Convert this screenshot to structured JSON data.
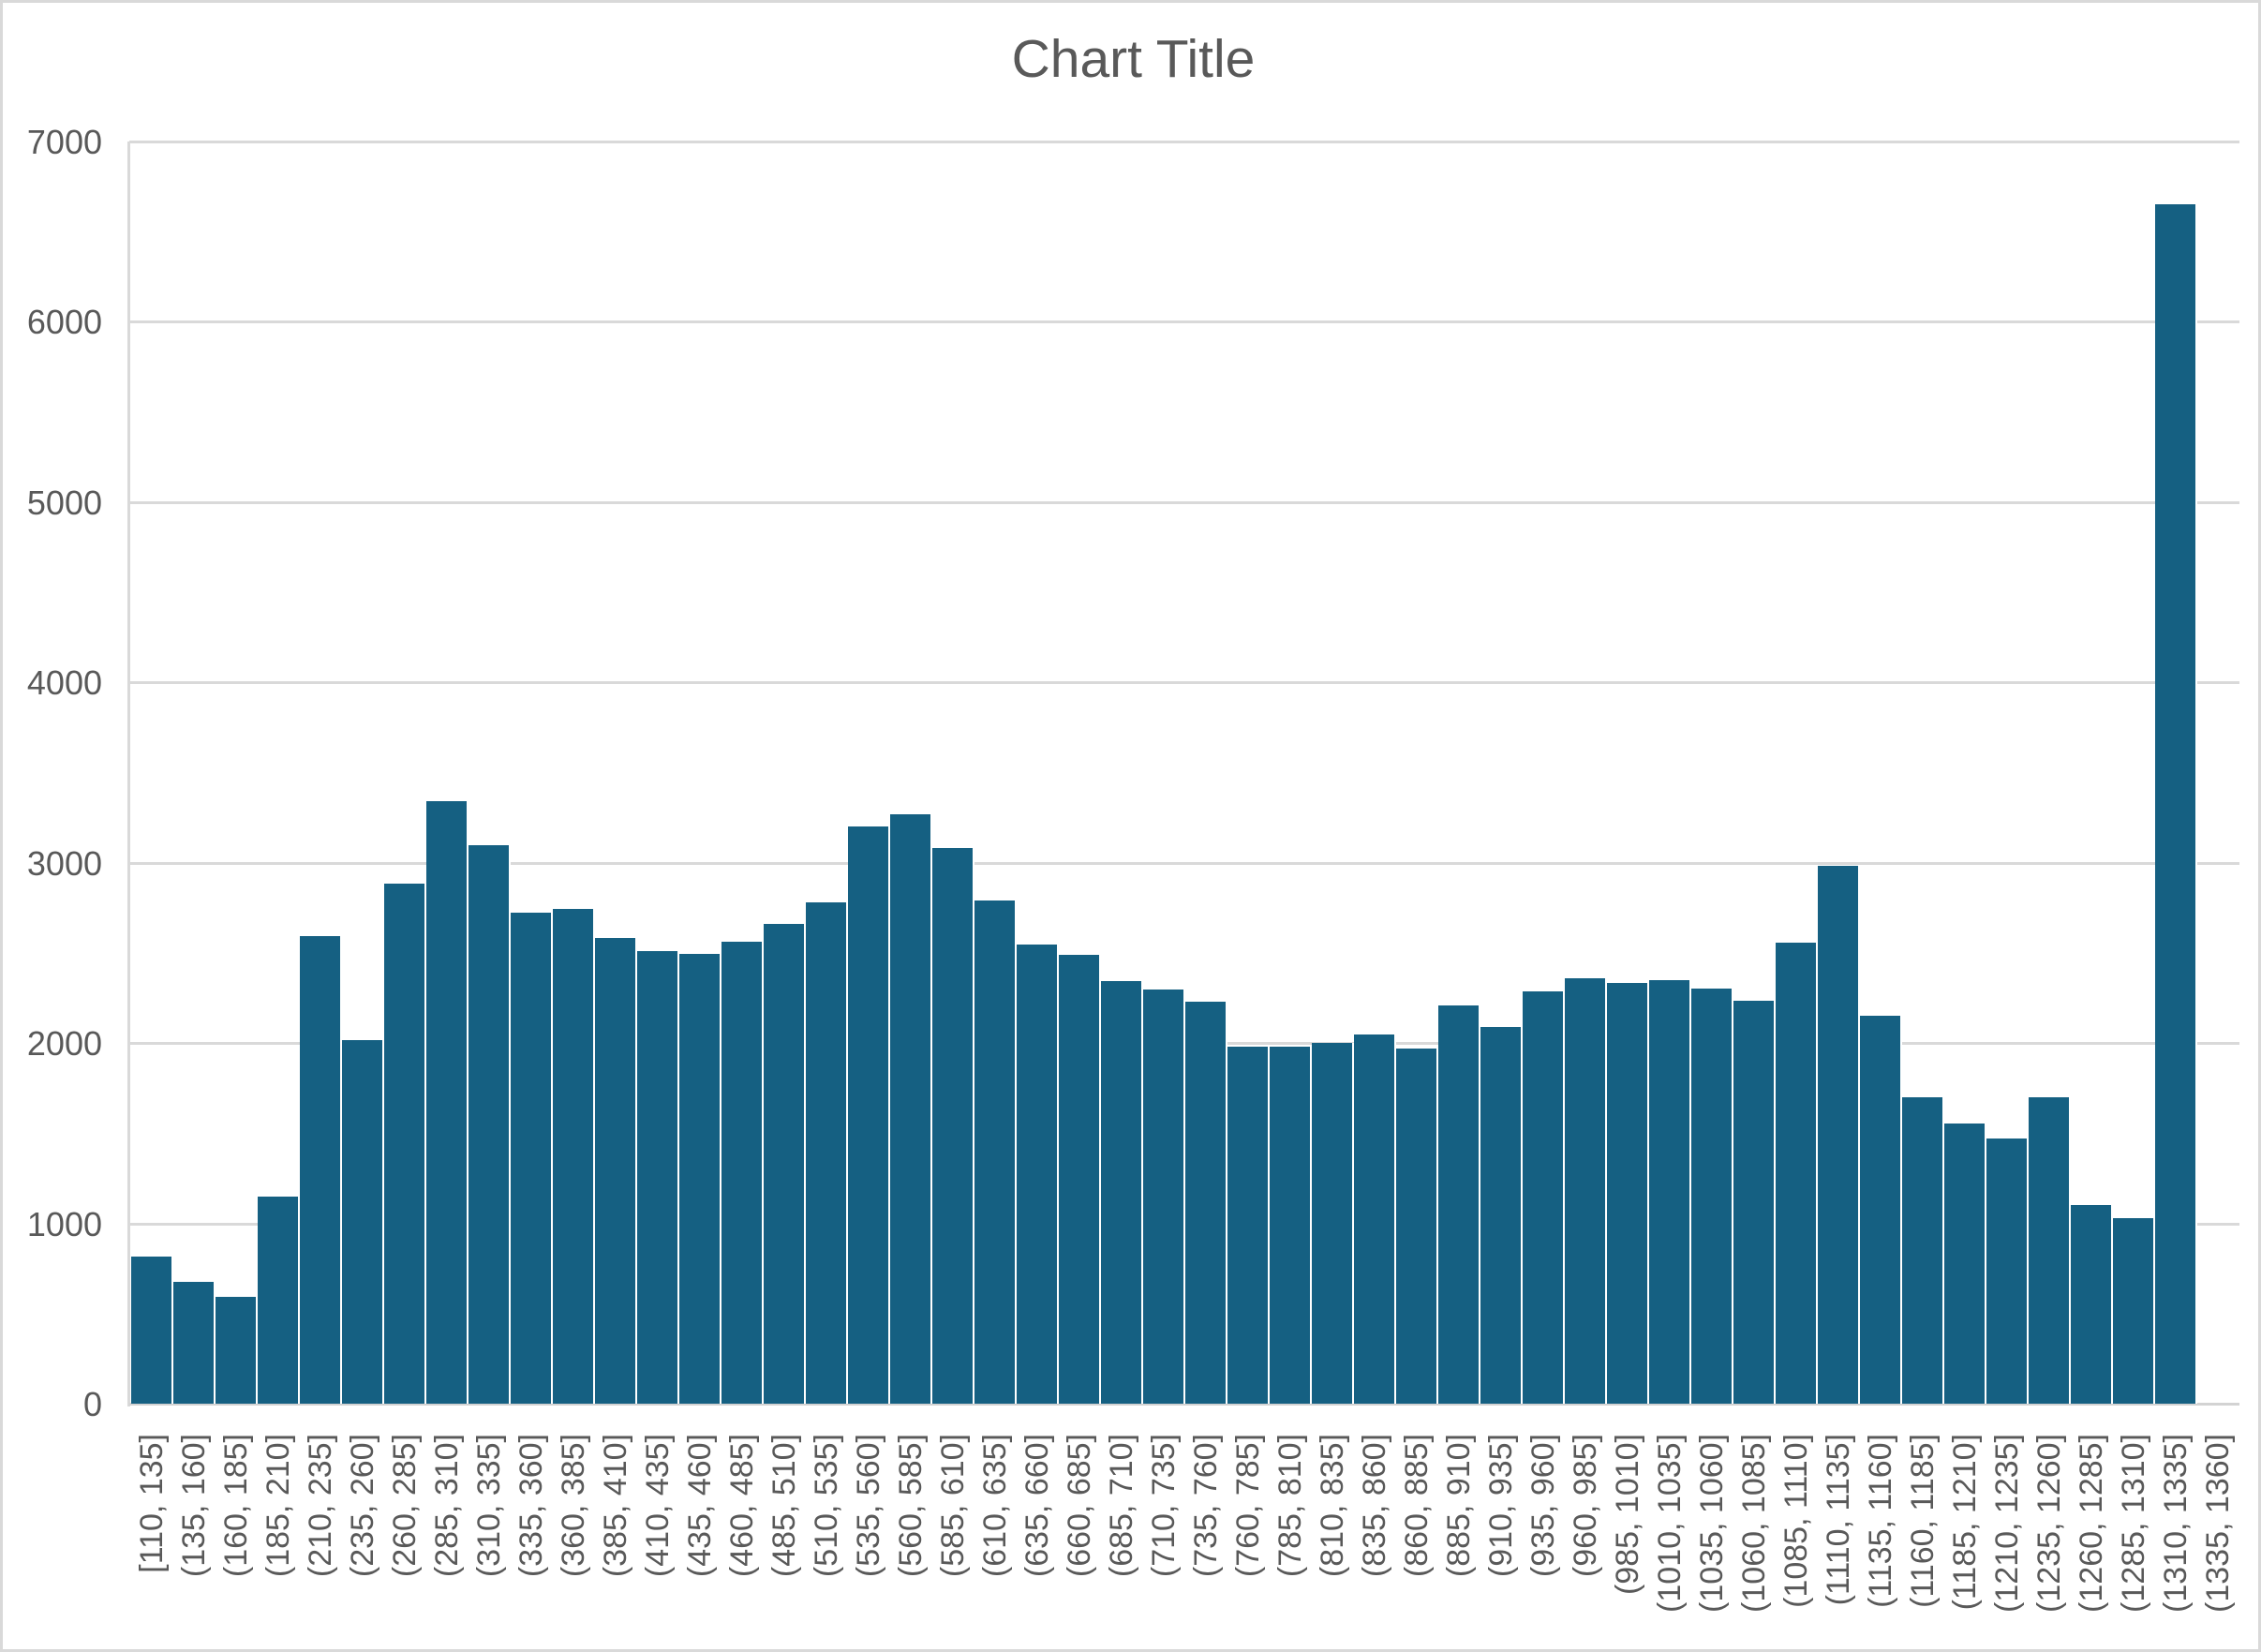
{
  "title": "Chart Title",
  "colors": {
    "bar": "#156082",
    "gridline": "#d9d9d9",
    "axis_line": "#d3d3d3",
    "label_text": "#595959",
    "title_text": "#595959",
    "background": "#ffffff",
    "frame_border": "#d9d9d9"
  },
  "y_axis": {
    "tick_labels": [
      "0",
      "1000",
      "2000",
      "3000",
      "4000",
      "5000",
      "6000",
      "7000"
    ]
  },
  "chart_data": {
    "type": "bar",
    "title": "Chart Title",
    "xlabel": "",
    "ylabel": "",
    "ylim": [
      0,
      7000
    ],
    "yticks": [
      0,
      1000,
      2000,
      3000,
      4000,
      5000,
      6000,
      7000
    ],
    "grid": true,
    "legend": false,
    "bar_color": "#156082",
    "categories": [
      "[110, 135]",
      "(135, 160]",
      "(160, 185]",
      "(185, 210]",
      "(210, 235]",
      "(235, 260]",
      "(260, 285]",
      "(285, 310]",
      "(310, 335]",
      "(335, 360]",
      "(360, 385]",
      "(385, 410]",
      "(410, 435]",
      "(435, 460]",
      "(460, 485]",
      "(485, 510]",
      "(510, 535]",
      "(535, 560]",
      "(560, 585]",
      "(585, 610]",
      "(610, 635]",
      "(635, 660]",
      "(660, 685]",
      "(685, 710]",
      "(710, 735]",
      "(735, 760]",
      "(760, 785]",
      "(785, 810]",
      "(810, 835]",
      "(835, 860]",
      "(860, 885]",
      "(885, 910]",
      "(910, 935]",
      "(935, 960]",
      "(960, 985]",
      "(985, 1010]",
      "(1010, 1035]",
      "(1035, 1060]",
      "(1060, 1085]",
      "(1085, 1110]",
      "(1110, 1135]",
      "(1135, 1160]",
      "(1160, 1185]",
      "(1185, 1210]",
      "(1210, 1235]",
      "(1235, 1260]",
      "(1260, 1285]",
      "(1285, 1310]",
      "(1310, 1335]",
      "(1335, 1360]"
    ],
    "values": [
      815,
      675,
      595,
      1150,
      2595,
      2015,
      2885,
      3340,
      3100,
      2725,
      2745,
      2585,
      2510,
      2495,
      2560,
      2660,
      2780,
      3200,
      3270,
      3080,
      2790,
      2545,
      2490,
      2345,
      2295,
      2230,
      1980,
      1980,
      2000,
      2050,
      1970,
      2210,
      2090,
      2285,
      2360,
      2335,
      2350,
      2305,
      2235,
      2555,
      2985,
      2150,
      1700,
      1555,
      1470,
      1700,
      1100,
      1030,
      6650,
      0
    ]
  }
}
